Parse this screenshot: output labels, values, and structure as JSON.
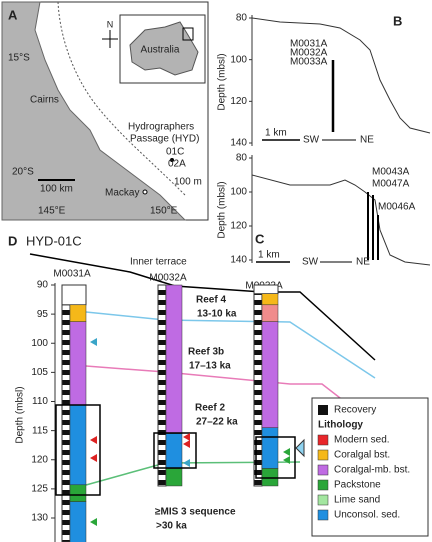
{
  "panel_a": {
    "label": "A",
    "lat_15": "15°S",
    "cairns": "Cairns",
    "hyd_line1": "Hydrographers",
    "hyd_line2": "Passage (HYD)",
    "site_01c": "01C",
    "site_02a": "02A",
    "lat_20": "20°S",
    "isobath": "100 m",
    "mackay": "Mackay",
    "scale": "100 km",
    "lon_145": "145°E",
    "lon_150": "150°E",
    "inset": "Australia",
    "north": "N"
  },
  "panel_b": {
    "label": "B",
    "y_axis_label": "Depth (mbsl)",
    "ylim": [
      80,
      140
    ],
    "yticks": [
      80,
      100,
      120,
      140
    ],
    "cores": [
      "M0031A",
      "M0032A",
      "M0033A"
    ],
    "scale": "1 km",
    "sw": "SW",
    "ne": "NE"
  },
  "panel_c": {
    "label": "C",
    "y_axis_label": "Depth (mbsl)",
    "ylim": [
      80,
      140
    ],
    "yticks": [
      80,
      100,
      120,
      140
    ],
    "cores": [
      "M0043A",
      "M0047A",
      "M0046A"
    ],
    "scale": "1 km",
    "sw": "SW",
    "ne": "NE"
  },
  "panel_d": {
    "label": "D",
    "title": "HYD-01C",
    "terrace": "Inner terrace",
    "y_axis_label": "Depth (mbsl)",
    "ylim": [
      90,
      135
    ],
    "yticks": [
      90,
      95,
      100,
      105,
      110,
      115,
      120,
      125,
      130
    ],
    "cores": [
      {
        "name": "M0031A",
        "segments": [
          {
            "color": "#f5b819",
            "top": 93.4,
            "bottom": 96.3
          },
          {
            "color": "#bf6be3",
            "top": 96.3,
            "bottom": 110.6
          },
          {
            "color": "#1f8fe0",
            "top": 110.6,
            "bottom": 124.3
          },
          {
            "color": "#2aa639",
            "top": 124.3,
            "bottom": 127.2
          },
          {
            "color": "#1f8fe0",
            "top": 127.2,
            "bottom": 135
          }
        ]
      },
      {
        "name": "M0032A",
        "segments": [
          {
            "color": "#bf6be3",
            "top": 90,
            "bottom": 115.5
          },
          {
            "color": "#1f8fe0",
            "top": 115.5,
            "bottom": 121.5
          },
          {
            "color": "#2aa639",
            "top": 121.5,
            "bottom": 124.5
          }
        ]
      },
      {
        "name": "M0033A",
        "segments": [
          {
            "color": "#f5b819",
            "top": 91.5,
            "bottom": 93.4
          },
          {
            "color": "#f08c8c",
            "top": 93.4,
            "bottom": 96.3
          },
          {
            "color": "#bf6be3",
            "top": 96.3,
            "bottom": 114.5
          },
          {
            "color": "#1f8fe0",
            "top": 114.5,
            "bottom": 121.5
          },
          {
            "color": "#2aa639",
            "top": 121.5,
            "bottom": 124.5
          }
        ]
      }
    ],
    "reefs": [
      {
        "name": "Reef 4",
        "age": "13-10 ka",
        "color": "#a32cc4"
      },
      {
        "name": "Reef 3b",
        "age": "17–13 ka",
        "color": "#2a9fd6"
      },
      {
        "name": "Reef 2",
        "age": "27–22 ka",
        "color": "#d6339a"
      },
      {
        "name": "≥MIS 3 sequence",
        "age": ">30 ka",
        "color": "#2aa639"
      }
    ],
    "legend": {
      "recovery": "Recovery",
      "title": "Lithology",
      "items": [
        {
          "name": "Modern sed.",
          "color": "#e8262a"
        },
        {
          "name": "Coralgal bst.",
          "color": "#f5b819"
        },
        {
          "name": "Coralgal-mb. bst.",
          "color": "#bf6be3"
        },
        {
          "name": "Packstone",
          "color": "#2aa639"
        },
        {
          "name": "Lime sand",
          "color": "#a3e6a0"
        },
        {
          "name": "Unconsol. sed.",
          "color": "#1f8fe0"
        }
      ]
    }
  }
}
